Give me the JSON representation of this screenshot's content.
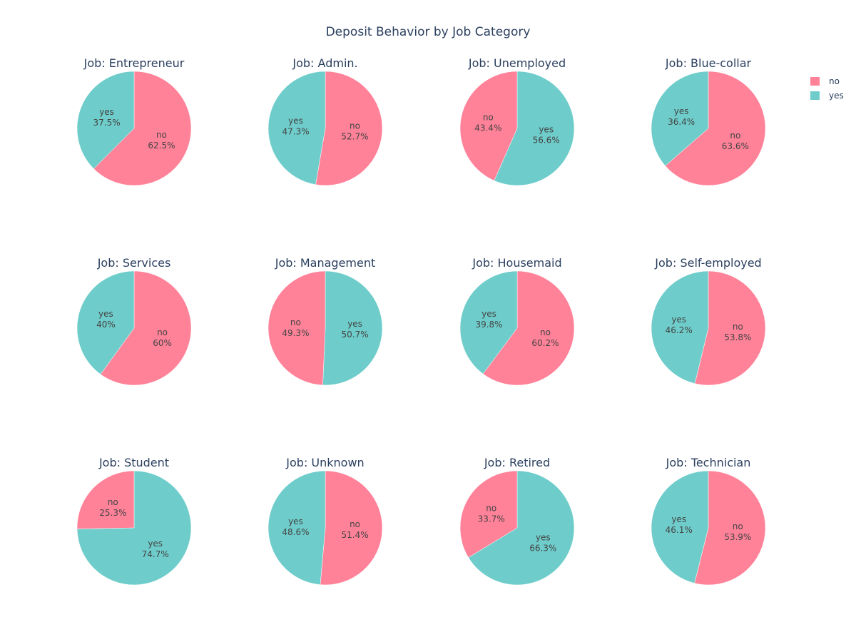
{
  "chart_data": {
    "type": "pie",
    "title": "Deposit Behavior by Job Category",
    "legend": {
      "position": "top-right",
      "entries": [
        {
          "name": "no",
          "color": "#ff8299"
        },
        {
          "name": "yes",
          "color": "#6ecdcb"
        }
      ]
    },
    "colors": {
      "no": "#ff8299",
      "yes": "#6ecdcb"
    },
    "pies": [
      {
        "title": "Job: Entrepreneur",
        "slices": [
          {
            "label": "no",
            "value": 62.5,
            "text": "62.5%"
          },
          {
            "label": "yes",
            "value": 37.5,
            "text": "37.5%"
          }
        ]
      },
      {
        "title": "Job: Admin.",
        "slices": [
          {
            "label": "no",
            "value": 52.7,
            "text": "52.7%"
          },
          {
            "label": "yes",
            "value": 47.3,
            "text": "47.3%"
          }
        ]
      },
      {
        "title": "Job: Unemployed",
        "slices": [
          {
            "label": "yes",
            "value": 56.6,
            "text": "56.6%"
          },
          {
            "label": "no",
            "value": 43.4,
            "text": "43.4%"
          }
        ]
      },
      {
        "title": "Job: Blue-collar",
        "slices": [
          {
            "label": "no",
            "value": 63.6,
            "text": "63.6%"
          },
          {
            "label": "yes",
            "value": 36.4,
            "text": "36.4%"
          }
        ]
      },
      {
        "title": "Job: Services",
        "slices": [
          {
            "label": "no",
            "value": 60,
            "text": "60%"
          },
          {
            "label": "yes",
            "value": 40,
            "text": "40%"
          }
        ]
      },
      {
        "title": "Job: Management",
        "slices": [
          {
            "label": "yes",
            "value": 50.7,
            "text": "50.7%"
          },
          {
            "label": "no",
            "value": 49.3,
            "text": "49.3%"
          }
        ]
      },
      {
        "title": "Job: Housemaid",
        "slices": [
          {
            "label": "no",
            "value": 60.2,
            "text": "60.2%"
          },
          {
            "label": "yes",
            "value": 39.8,
            "text": "39.8%"
          }
        ]
      },
      {
        "title": "Job: Self-employed",
        "slices": [
          {
            "label": "no",
            "value": 53.8,
            "text": "53.8%"
          },
          {
            "label": "yes",
            "value": 46.2,
            "text": "46.2%"
          }
        ]
      },
      {
        "title": "Job: Student",
        "slices": [
          {
            "label": "yes",
            "value": 74.7,
            "text": "74.7%"
          },
          {
            "label": "no",
            "value": 25.3,
            "text": "25.3%"
          }
        ]
      },
      {
        "title": "Job: Unknown",
        "slices": [
          {
            "label": "no",
            "value": 51.4,
            "text": "51.4%"
          },
          {
            "label": "yes",
            "value": 48.6,
            "text": "48.6%"
          }
        ]
      },
      {
        "title": "Job: Retired",
        "slices": [
          {
            "label": "yes",
            "value": 66.3,
            "text": "66.3%"
          },
          {
            "label": "no",
            "value": 33.7,
            "text": "33.7%"
          }
        ]
      },
      {
        "title": "Job: Technician",
        "slices": [
          {
            "label": "no",
            "value": 53.9,
            "text": "53.9%"
          },
          {
            "label": "yes",
            "value": 46.1,
            "text": "46.1%"
          }
        ]
      }
    ]
  }
}
